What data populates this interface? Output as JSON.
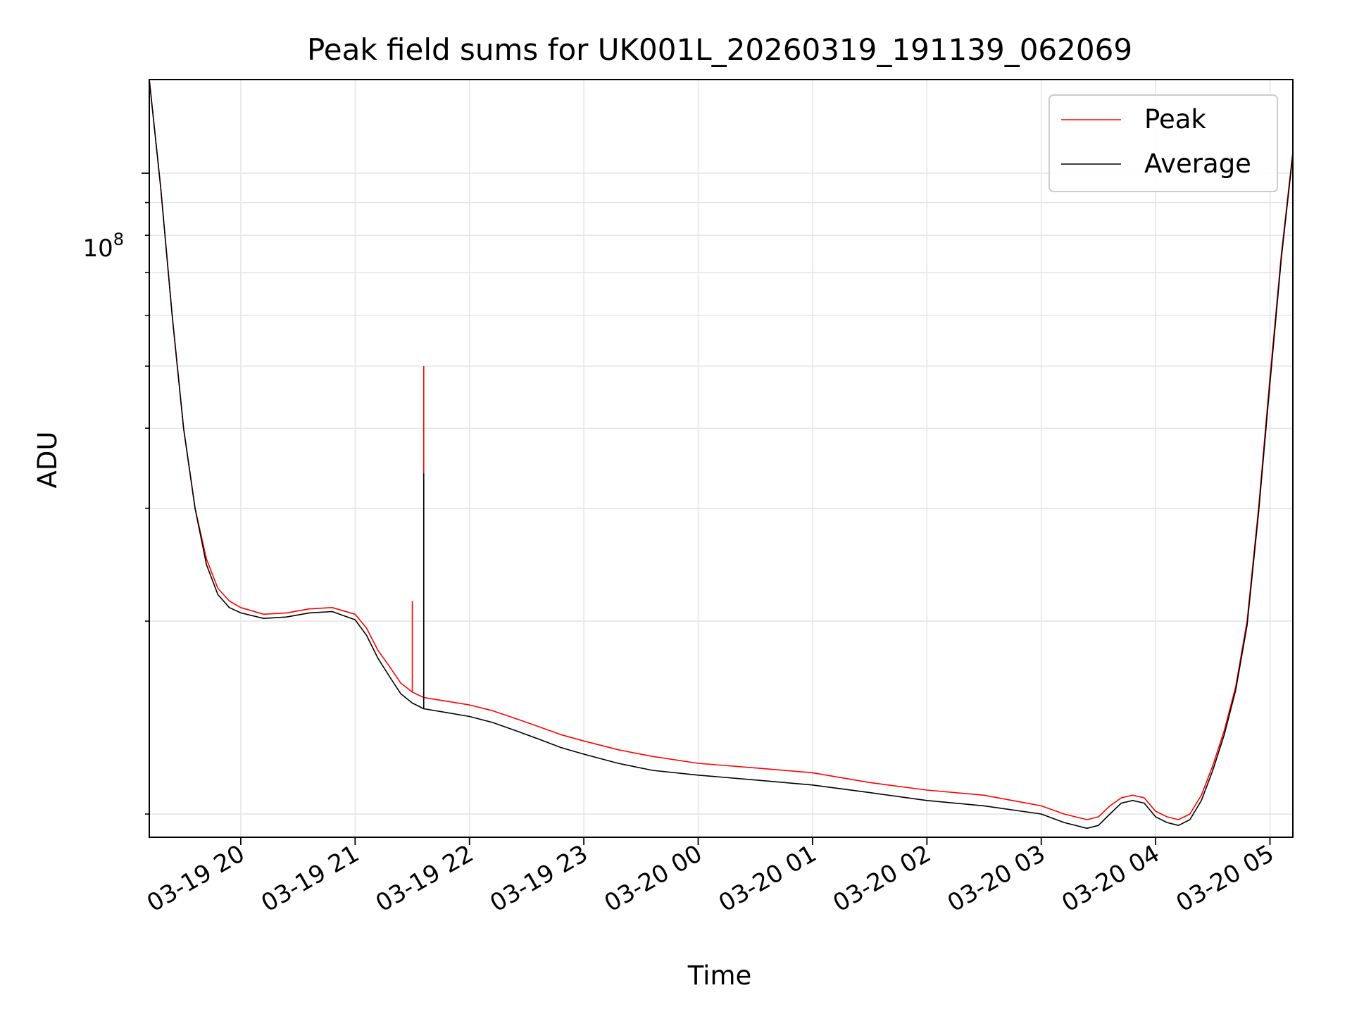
{
  "chart_data": {
    "type": "line",
    "title": "Peak field sums for UK001L_20260319_191139_062069",
    "xlabel": "Time",
    "ylabel": "ADU",
    "yscale": "log",
    "ylim": [
      9200000,
      140000000
    ],
    "xlim_hours": [
      19.2,
      29.2
    ],
    "x_tick_labels": [
      "03-19 20",
      "03-19 21",
      "03-19 22",
      "03-19 23",
      "03-20 00",
      "03-20 01",
      "03-20 02",
      "03-20 03",
      "03-20 04",
      "03-20 05"
    ],
    "x_tick_hours": [
      20,
      21,
      22,
      23,
      24,
      25,
      26,
      27,
      28,
      29
    ],
    "y_tick_labels": [
      {
        "base": "10",
        "exponent": "8"
      }
    ],
    "y_major_ticks": [
      100000000
    ],
    "y_minor_ticks": [
      10000000,
      20000000,
      30000000,
      40000000,
      50000000,
      60000000,
      70000000,
      80000000,
      90000000
    ],
    "grid": true,
    "legend_position": "upper-right",
    "colors": {
      "peak": "#ff0000",
      "average": "#000000",
      "grid": "#e6e6e6"
    },
    "series": [
      {
        "name": "Peak",
        "color": "#ff0000",
        "x_hours": [
          19.2,
          19.3,
          19.4,
          19.5,
          19.6,
          19.7,
          19.8,
          19.9,
          20.0,
          20.2,
          20.4,
          20.6,
          20.8,
          21.0,
          21.1,
          21.2,
          21.3,
          21.4,
          21.5,
          21.6,
          21.8,
          22.0,
          22.2,
          22.4,
          22.6,
          22.8,
          23.0,
          23.3,
          23.6,
          24.0,
          24.5,
          25.0,
          25.5,
          26.0,
          26.5,
          27.0,
          27.2,
          27.4,
          27.5,
          27.6,
          27.7,
          27.8,
          27.9,
          28.0,
          28.1,
          28.2,
          28.3,
          28.4,
          28.5,
          28.6,
          28.7,
          28.8,
          28.9,
          29.0,
          29.1,
          29.2
        ],
        "values": [
          140000000,
          95000000,
          60000000,
          40000000,
          30000000,
          25000000,
          22500000,
          21500000,
          21000000,
          20500000,
          20600000,
          20900000,
          21000000,
          20500000,
          19500000,
          18000000,
          17000000,
          16000000,
          15500000,
          15200000,
          15000000,
          14800000,
          14500000,
          14100000,
          13700000,
          13300000,
          13000000,
          12600000,
          12300000,
          12000000,
          11800000,
          11600000,
          11200000,
          10900000,
          10700000,
          10300000,
          10000000,
          9800000,
          9900000,
          10300000,
          10600000,
          10700000,
          10600000,
          10100000,
          9900000,
          9800000,
          10000000,
          10700000,
          11900000,
          13500000,
          15800000,
          20000000,
          30000000,
          48000000,
          75000000,
          108000000
        ]
      },
      {
        "name": "Average",
        "color": "#000000",
        "x_hours": [
          19.2,
          19.3,
          19.4,
          19.5,
          19.6,
          19.7,
          19.8,
          19.9,
          20.0,
          20.2,
          20.4,
          20.6,
          20.8,
          21.0,
          21.1,
          21.2,
          21.3,
          21.4,
          21.5,
          21.6,
          21.8,
          22.0,
          22.2,
          22.4,
          22.6,
          22.8,
          23.0,
          23.3,
          23.6,
          24.0,
          24.5,
          25.0,
          25.5,
          26.0,
          26.5,
          27.0,
          27.2,
          27.4,
          27.5,
          27.6,
          27.7,
          27.8,
          27.9,
          28.0,
          28.1,
          28.2,
          28.3,
          28.4,
          28.5,
          28.6,
          28.7,
          28.8,
          28.9,
          29.0,
          29.1,
          29.2
        ],
        "values": [
          140000000,
          95000000,
          60000000,
          40000000,
          30000000,
          24500000,
          22000000,
          21000000,
          20600000,
          20200000,
          20300000,
          20600000,
          20700000,
          20100000,
          19000000,
          17500000,
          16400000,
          15400000,
          14900000,
          14600000,
          14400000,
          14200000,
          13900000,
          13500000,
          13100000,
          12700000,
          12400000,
          12000000,
          11700000,
          11500000,
          11300000,
          11100000,
          10800000,
          10500000,
          10300000,
          10000000,
          9700000,
          9500000,
          9600000,
          10000000,
          10400000,
          10500000,
          10400000,
          9900000,
          9700000,
          9600000,
          9800000,
          10500000,
          11700000,
          13300000,
          15600000,
          19700000,
          29500000,
          47000000,
          74000000,
          107000000
        ]
      }
    ],
    "spikes": [
      {
        "series": "Peak",
        "x_hours": 21.6,
        "value": 50000000
      },
      {
        "series": "Average",
        "x_hours": 21.6,
        "value": 34000000
      },
      {
        "series": "Peak",
        "x_hours": 21.5,
        "value": 21500000
      }
    ]
  }
}
